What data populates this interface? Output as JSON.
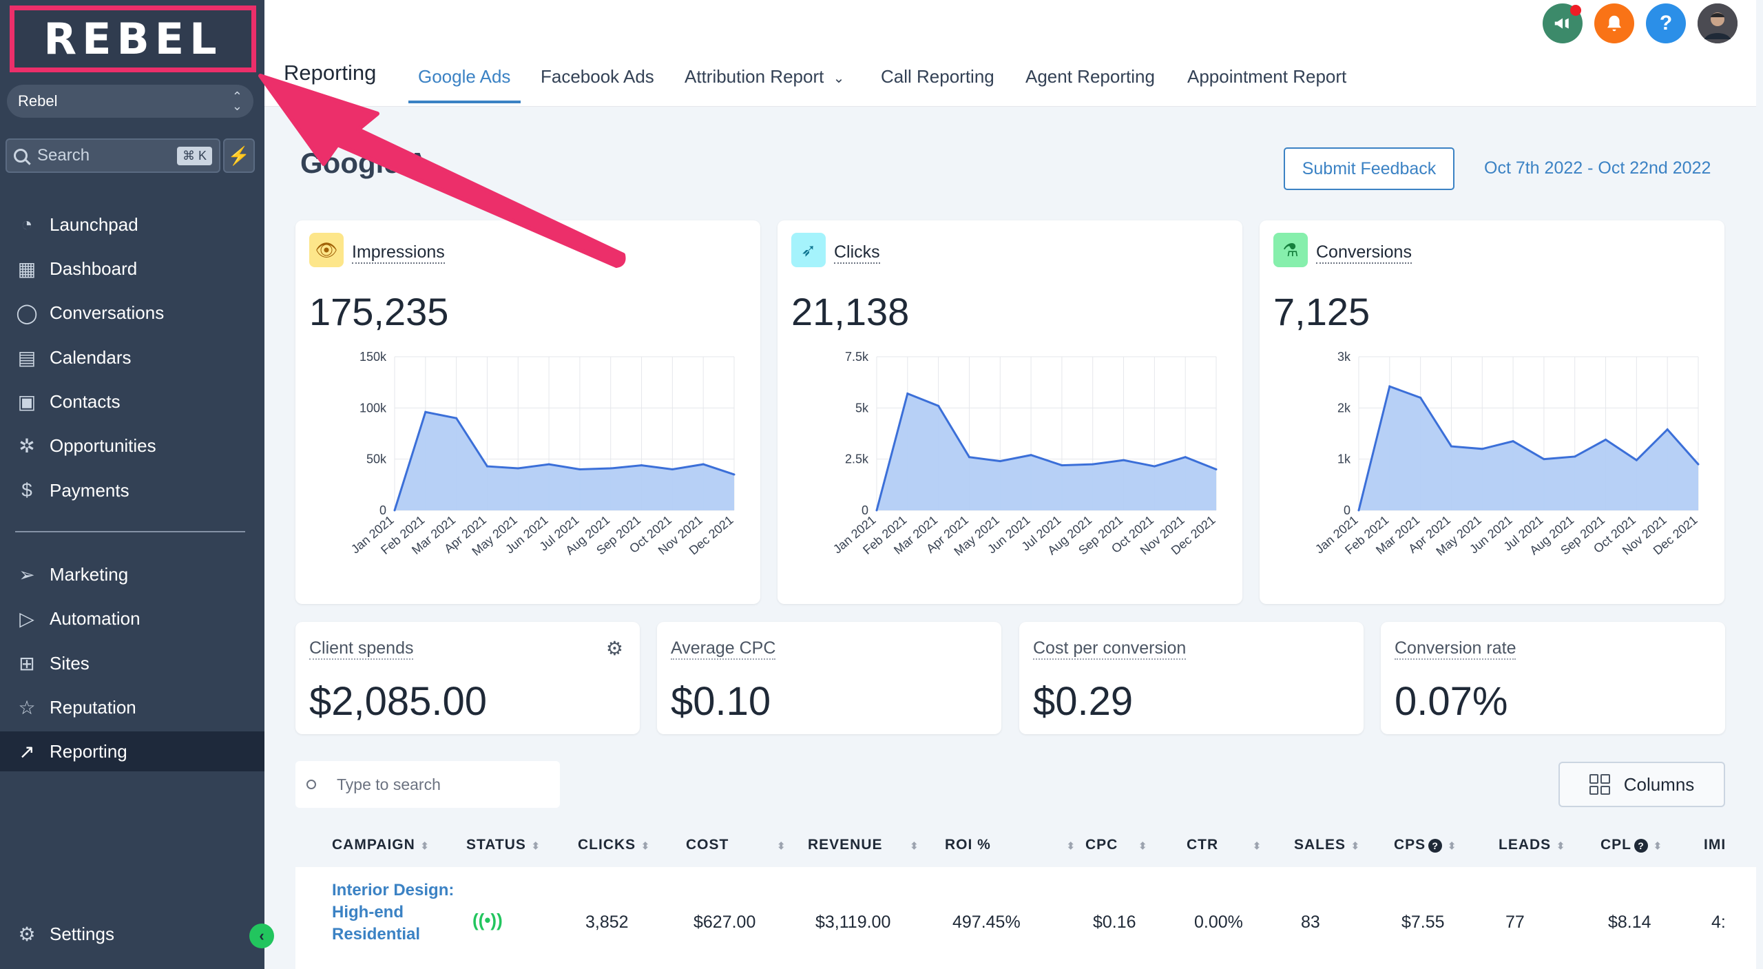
{
  "sidebar": {
    "logo": "REBEL",
    "account": "Rebel",
    "search_placeholder": "Search",
    "search_shortcut": "⌘ K",
    "items": [
      {
        "label": "Launchpad"
      },
      {
        "label": "Dashboard"
      },
      {
        "label": "Conversations"
      },
      {
        "label": "Calendars"
      },
      {
        "label": "Contacts"
      },
      {
        "label": "Opportunities"
      },
      {
        "label": "Payments"
      },
      {
        "label": "Marketing"
      },
      {
        "label": "Automation"
      },
      {
        "label": "Sites"
      },
      {
        "label": "Reputation"
      },
      {
        "label": "Reporting"
      }
    ],
    "settings": "Settings"
  },
  "topbar": {
    "section": "Reporting",
    "tabs": [
      {
        "label": "Google Ads"
      },
      {
        "label": "Facebook Ads"
      },
      {
        "label": "Attribution Report"
      },
      {
        "label": "Call Reporting"
      },
      {
        "label": "Agent Reporting"
      },
      {
        "label": "Appointment Report"
      }
    ]
  },
  "header": {
    "title": "Google A",
    "feedback_label": "Submit Feedback",
    "date_range": "Oct 7th 2022 - Oct 22nd 2022"
  },
  "metrics": [
    {
      "label": "Impressions",
      "value": "175,235"
    },
    {
      "label": "Clicks",
      "value": "21,138"
    },
    {
      "label": "Conversions",
      "value": "7,125"
    }
  ],
  "chart_data": [
    {
      "type": "area",
      "categories": [
        "Jan 2021",
        "Feb 2021",
        "Mar 2021",
        "Apr 2021",
        "May 2021",
        "Jun 2021",
        "Jul 2021",
        "Aug 2021",
        "Sep 2021",
        "Oct 2021",
        "Nov 2021",
        "Dec 2021"
      ],
      "values": [
        0,
        96000,
        90000,
        43000,
        41000,
        45000,
        40000,
        41000,
        44000,
        40000,
        45000,
        35000
      ],
      "ylim": [
        0,
        150000
      ],
      "yticks": [
        "0",
        "50k",
        "100k",
        "150k"
      ],
      "color": "#3b6fd8"
    },
    {
      "type": "area",
      "categories": [
        "Jan 2021",
        "Feb 2021",
        "Mar 2021",
        "Apr 2021",
        "May 2021",
        "Jun 2021",
        "Jul 2021",
        "Aug 2021",
        "Sep 2021",
        "Oct 2021",
        "Nov 2021",
        "Dec 2021"
      ],
      "values": [
        0,
        5700,
        5100,
        2600,
        2400,
        2700,
        2200,
        2250,
        2450,
        2150,
        2600,
        2000
      ],
      "ylim": [
        0,
        7500
      ],
      "yticks": [
        "0",
        "2.5k",
        "5k",
        "7.5k"
      ],
      "color": "#3b6fd8"
    },
    {
      "type": "area",
      "categories": [
        "Jan 2021",
        "Feb 2021",
        "Mar 2021",
        "Apr 2021",
        "May 2021",
        "Jun 2021",
        "Jul 2021",
        "Aug 2021",
        "Sep 2021",
        "Oct 2021",
        "Nov 2021",
        "Dec 2021"
      ],
      "values": [
        0,
        2420,
        2200,
        1250,
        1200,
        1350,
        1000,
        1050,
        1380,
        980,
        1580,
        900
      ],
      "ylim": [
        0,
        3000
      ],
      "yticks": [
        "0",
        "1k",
        "2k",
        "3k"
      ],
      "color": "#3b6fd8"
    }
  ],
  "stats": [
    {
      "label": "Client spends",
      "value": "$2,085.00"
    },
    {
      "label": "Average CPC",
      "value": "$0.10"
    },
    {
      "label": "Cost per conversion",
      "value": "$0.29"
    },
    {
      "label": "Conversion rate",
      "value": "0.07%"
    }
  ],
  "table": {
    "search_placeholder": "Type to search",
    "columns_label": "Columns",
    "headers": [
      "CAMPAIGN",
      "STATUS",
      "CLICKS",
      "COST",
      "REVENUE",
      "ROI %",
      "CPC",
      "CTR",
      "SALES",
      "CPS",
      "LEADS",
      "CPL",
      "IMI"
    ],
    "rows": [
      {
        "campaign": "Interior Design: High-end Residential",
        "clicks": "3,852",
        "cost": "$627.00",
        "revenue": "$3,119.00",
        "roi": "497.45%",
        "cpc": "$0.16",
        "ctr": "0.00%",
        "sales": "83",
        "cps": "$7.55",
        "leads": "77",
        "cpl": "$8.14",
        "imp": "4:"
      }
    ]
  },
  "colors": {
    "sidebar": "#334155",
    "accent": "#3b82c4",
    "annotation": "#ec2f6a",
    "area_fill": "#b3cdf6"
  }
}
